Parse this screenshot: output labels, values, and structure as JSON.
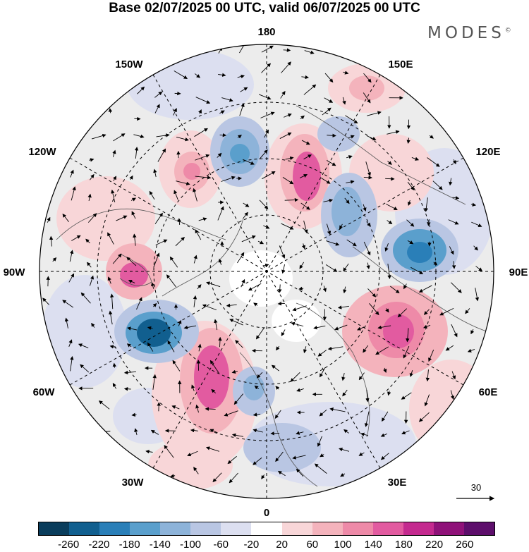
{
  "title": "Base 02/07/2025 00 UTC, valid 06/07/2025 00 UTC",
  "brand": "MODES",
  "brand_mark": "©",
  "longitude_labels": {
    "top": "180",
    "top_right": "150E",
    "right_upper": "120E",
    "right": "90E",
    "right_lower": "60E",
    "bottom_right": "30E",
    "bottom": "0",
    "bottom_left": "30W",
    "left_lower": "60W",
    "left": "90W",
    "left_upper": "120W",
    "top_left": "150W"
  },
  "wind_reference": {
    "value": "30"
  },
  "colorbar": {
    "tick_labels": [
      "-260",
      "-220",
      "-180",
      "-140",
      "-100",
      "-60",
      "-20",
      "20",
      "60",
      "100",
      "140",
      "180",
      "220",
      "260"
    ],
    "colors": [
      "#0a3d5c",
      "#115f8f",
      "#2a7fb8",
      "#5a9fcc",
      "#8db3d9",
      "#b9c6e3",
      "#dcdff0",
      "#ffffff",
      "#f8d6d8",
      "#f4b3bc",
      "#ee8aa8",
      "#e25ba0",
      "#c42a8f",
      "#8f1279",
      "#5d0e6b"
    ]
  },
  "map": {
    "projection": "north-polar-stereographic",
    "field_colors": {
      "strong_negative": "#2a7fb8",
      "negative": "#8db3d9",
      "weak_negative": "#dcdff0",
      "weak_positive": "#f8d6d8",
      "positive": "#f4b3bc",
      "strong_positive": "#e25ba0",
      "neutral": "#ececec"
    }
  }
}
